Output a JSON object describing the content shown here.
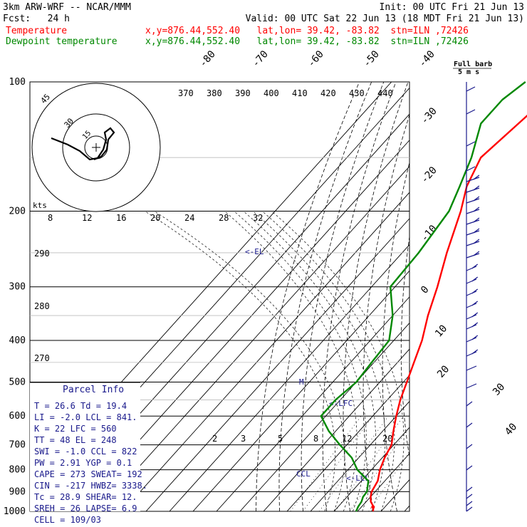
{
  "header": {
    "model": "3km ARW-WRF -- NCAR/MMM",
    "init": "Init: 00 UTC Fri 21 Jun 13",
    "fcst": "Fcst:   24 h",
    "valid": "Valid: 00 UTC Sat 22 Jun 13 (18 MDT Fri 21 Jun 13)",
    "temp_label": "Temperature",
    "dew_label": "Dewpoint temperature",
    "loc1": "x,y=876.44,552.40   lat,lon= 39.42, -83.82  stn=ILN ,72426",
    "loc2": "x,y=876.44,552.40   lat,lon= 39.42, -83.82  stn=ILN ,72426",
    "barb_title_1": "Full barb",
    "barb_title_2": "5 m s"
  },
  "colors": {
    "temperature": "#ff0000",
    "dewpoint": "#008800",
    "barbs": "#1a1a8c",
    "ink": "#000000"
  },
  "chart_data": {
    "type": "line",
    "chart_kind": "skew-T log-p sounding",
    "pressure_levels": [
      "100",
      "200",
      "300",
      "400",
      "500",
      "600",
      "700",
      "800",
      "900",
      "1000"
    ],
    "isotherm_labels": [
      "-80",
      "-70",
      "-60",
      "-50",
      "-40",
      "-30",
      "-20",
      "-10",
      "0",
      "10",
      "20",
      "30",
      "40"
    ],
    "theta_labels": [
      "370",
      "380",
      "390",
      "400",
      "410",
      "420",
      "430",
      "440"
    ],
    "theta_low_labels": [
      "290",
      "280",
      "270"
    ],
    "mixing_ratio_labels": [
      "2",
      "3",
      "5",
      "8",
      "12",
      "20"
    ],
    "hodograph_top_labels": [
      "8",
      "12",
      "16",
      "20",
      "24",
      "28",
      "32"
    ],
    "hodo_units": "kts",
    "hodo_rings": [
      "15",
      "30",
      "45"
    ],
    "markers": [
      "<-EL",
      "<-LFC",
      "<-LCL",
      "CCL",
      "M"
    ],
    "series": [
      {
        "name": "Temperature",
        "points": [
          [
            1000,
            26.6
          ],
          [
            975,
            25
          ],
          [
            950,
            22
          ],
          [
            925,
            20
          ],
          [
            900,
            18.5
          ],
          [
            850,
            17
          ],
          [
            800,
            13.6
          ],
          [
            750,
            11
          ],
          [
            700,
            9
          ],
          [
            650,
            4.5
          ],
          [
            600,
            0
          ],
          [
            550,
            -4.5
          ],
          [
            500,
            -8.5
          ],
          [
            450,
            -13
          ],
          [
            400,
            -18
          ],
          [
            350,
            -25
          ],
          [
            300,
            -32
          ],
          [
            250,
            -41
          ],
          [
            200,
            -51
          ],
          [
            175,
            -58
          ],
          [
            150,
            -63
          ],
          [
            125,
            -60
          ],
          [
            110,
            -58
          ],
          [
            100,
            -54
          ]
        ]
      },
      {
        "name": "Dewpoint temperature",
        "points": [
          [
            1000,
            19.4
          ],
          [
            975,
            18.5
          ],
          [
            950,
            18
          ],
          [
            925,
            16.8
          ],
          [
            900,
            16.5
          ],
          [
            850,
            13
          ],
          [
            800,
            4
          ],
          [
            750,
            -3
          ],
          [
            700,
            -13
          ],
          [
            650,
            -23
          ],
          [
            600,
            -32
          ],
          [
            550,
            -32
          ],
          [
            500,
            -30
          ],
          [
            450,
            -31
          ],
          [
            400,
            -32
          ],
          [
            350,
            -40
          ],
          [
            300,
            -52
          ],
          [
            250,
            -53
          ],
          [
            200,
            -56
          ],
          [
            175,
            -61
          ],
          [
            150,
            -67
          ],
          [
            125,
            -76
          ],
          [
            110,
            -76
          ],
          [
            100,
            -73
          ]
        ]
      }
    ]
  },
  "parcel_info": {
    "title": "Parcel Info",
    "rows": [
      [
        "T  =   26.6 Td =  19.4"
      ],
      [
        "LI =   -2.0 LCL =  841."
      ],
      [
        "K  =     22 LFC =  560"
      ],
      [
        "TT =     48 EL  =  248"
      ],
      [
        "SWI =  -1.0 CCL =  822"
      ],
      [
        "PW =   2.91 YGP =   0.1"
      ],
      [
        "CAPE =  273 SWEAT=  192"
      ],
      [
        "CIN =  -217 HWBZ= 3338."
      ],
      [
        "Tc =   28.9 SHEAR=  12."
      ],
      [
        "SREH =   26 LAPSE=  6.9"
      ],
      [
        "CELL = 109/03"
      ]
    ]
  }
}
